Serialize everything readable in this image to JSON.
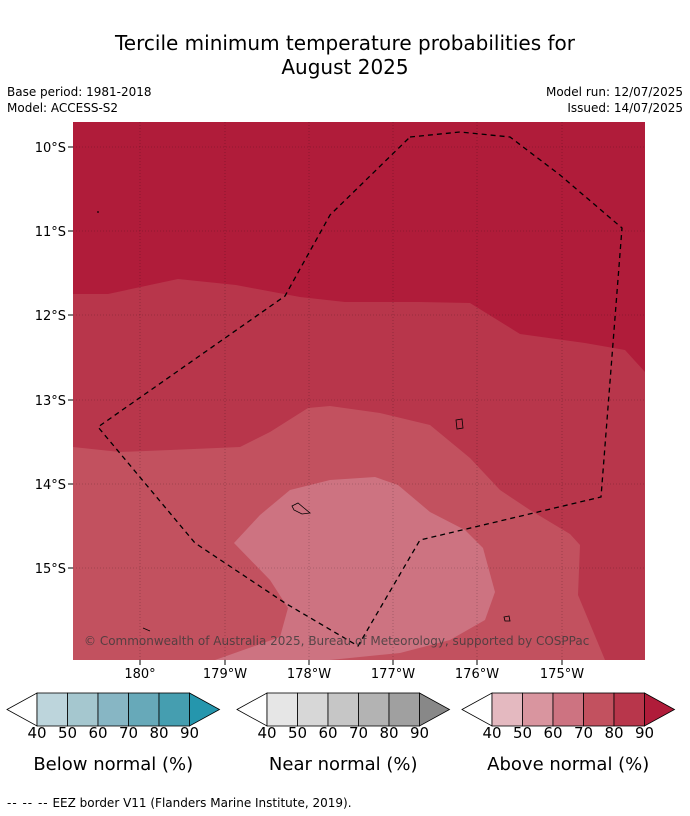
{
  "title_line1": "Tercile minimum temperature probabilities for",
  "title_line2": "August 2025",
  "base_period": "Base period: 1981-2018",
  "model": "Model: ACCESS-S2",
  "model_run": "Model run: 12/07/2025",
  "issued": "Issued: 14/07/2025",
  "copyright": "© Commonwealth of Australia 2025, Bureau of Meteorology, supported by COSPPac",
  "lat_labels": [
    "10°S",
    "11°S",
    "12°S",
    "13°S",
    "14°S",
    "15°S"
  ],
  "lon_labels": [
    "180°",
    "179°W",
    "178°W",
    "177°W",
    "176°W",
    "175°W"
  ],
  "legends": [
    {
      "label": "Below normal (%)",
      "ticks": [
        "40",
        "50",
        "60",
        "70",
        "80",
        "90"
      ],
      "colors": [
        "#ffffff",
        "#bdd5dc",
        "#a5c7cf",
        "#87b6c4",
        "#67a9b9",
        "#459eb0",
        "#2596ad"
      ]
    },
    {
      "label": "Near normal (%)",
      "ticks": [
        "40",
        "50",
        "60",
        "70",
        "80",
        "90"
      ],
      "colors": [
        "#ffffff",
        "#e6e6e6",
        "#d7d7d7",
        "#c6c6c6",
        "#b3b3b3",
        "#a0a0a0",
        "#888888"
      ]
    },
    {
      "label": "Above normal (%)",
      "ticks": [
        "40",
        "50",
        "60",
        "70",
        "80",
        "90"
      ],
      "colors": [
        "#ffffff",
        "#e4b9c0",
        "#d9959f",
        "#cd7381",
        "#c2515f",
        "#b8364b",
        "#b01c3a"
      ]
    }
  ],
  "footer_dashes": "-- -- --",
  "footer_text": "EEZ border V11 (Flanders Marine Institute, 2019).",
  "colors": {
    "above_90": "#b01c3a",
    "above_80": "#b8364b",
    "above_70": "#c2515f",
    "above_60": "#cd7381",
    "above_50": "#d9959f"
  }
}
